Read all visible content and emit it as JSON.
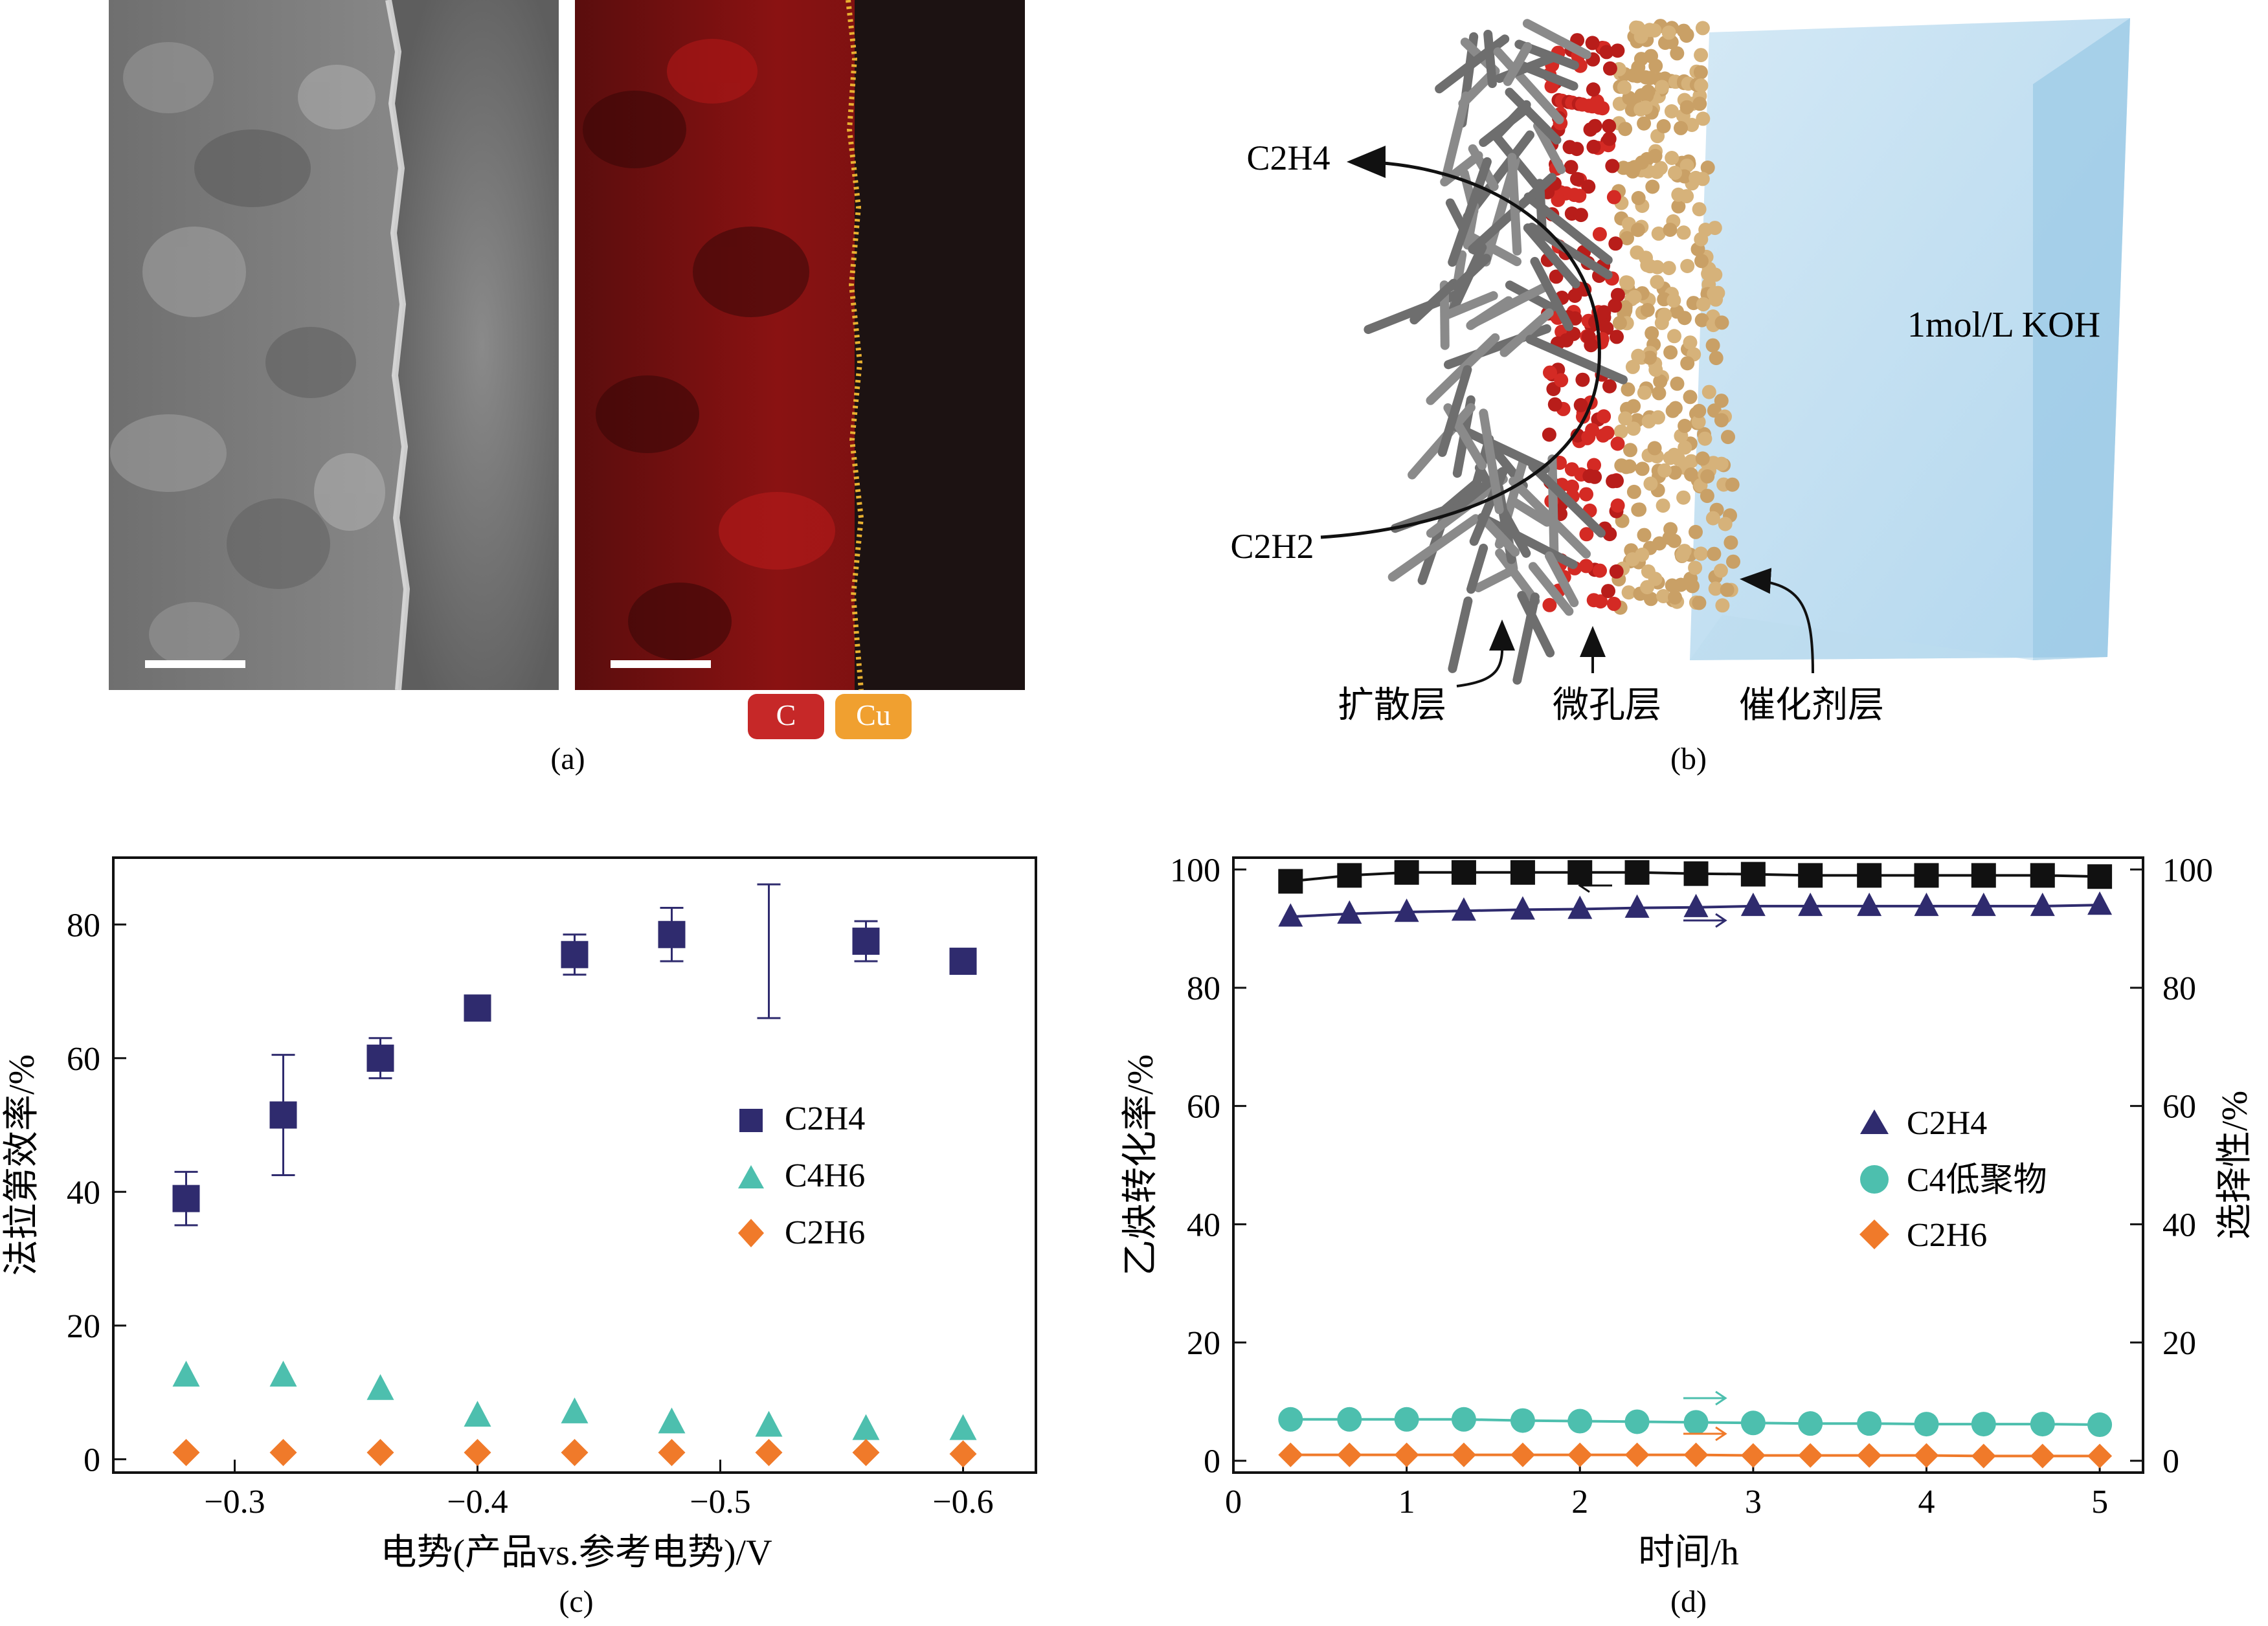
{
  "panel_a": {
    "caption": "(a)",
    "legend": [
      {
        "label": "C",
        "color": "#c62828"
      },
      {
        "label": "Cu",
        "color": "#f0a030"
      }
    ]
  },
  "panel_b": {
    "caption": "(b)",
    "inlet": "C2H2",
    "outlet": "C2H4",
    "electrolyte": "1mol/L KOH",
    "layers": [
      "扩散层",
      "微孔层",
      "催化剂层"
    ]
  },
  "chart_data": [
    {
      "type": "scatter",
      "panel": "c",
      "caption": "(c)",
      "ylabel": "法拉第效率/%",
      "xlabel": "电势(产品vs.参考电势)/V",
      "xlim": [
        -0.25,
        -0.63
      ],
      "ylim": [
        -2,
        90
      ],
      "xticks": [
        -0.3,
        -0.4,
        -0.5,
        -0.6
      ],
      "xtick_labels": [
        "−0.3",
        "−0.4",
        "−0.5",
        "−0.6"
      ],
      "yticks": [
        0,
        20,
        40,
        60,
        80
      ],
      "yticks_labels": [
        "0",
        "20",
        "40",
        "60",
        "80"
      ],
      "legend_position": "right-center",
      "series": [
        {
          "name": "C2H4",
          "marker": "square",
          "color": "#2f2b6e",
          "x": [
            -0.28,
            -0.32,
            -0.36,
            -0.4,
            -0.44,
            -0.48,
            -0.52,
            -0.56,
            -0.6
          ],
          "y": [
            39,
            51.5,
            60,
            67.5,
            75.5,
            78.5,
            null,
            77.5,
            74.5
          ],
          "err": [
            4,
            9,
            3,
            0,
            3,
            4,
            10,
            3,
            0
          ],
          "err_center": [
            39,
            51.5,
            60,
            67.5,
            75.5,
            78.5,
            76,
            77.5,
            74.5
          ]
        },
        {
          "name": "C4H6",
          "marker": "triangle",
          "color": "#4dbfae",
          "x": [
            -0.28,
            -0.32,
            -0.36,
            -0.4,
            -0.44,
            -0.48,
            -0.52,
            -0.56,
            -0.6
          ],
          "y": [
            12.5,
            12.5,
            10.5,
            6.5,
            7,
            5.5,
            5,
            4.5,
            4.5
          ]
        },
        {
          "name": "C2H6",
          "marker": "diamond",
          "color": "#f07a2a",
          "x": [
            -0.28,
            -0.32,
            -0.36,
            -0.4,
            -0.44,
            -0.48,
            -0.52,
            -0.56,
            -0.6
          ],
          "y": [
            1,
            1,
            1,
            1,
            1,
            1,
            1,
            1,
            0.8
          ]
        }
      ]
    },
    {
      "type": "line",
      "panel": "d",
      "caption": "(d)",
      "xlabel": "时间/h",
      "ylabel_left": "乙炔转化率/%",
      "ylabel_right": "选择性/%",
      "xlim": [
        0,
        5.25
      ],
      "ylim": [
        -2,
        102
      ],
      "xticks": [
        0,
        1,
        2,
        3,
        4,
        5
      ],
      "xtick_labels": [
        "0",
        "1",
        "2",
        "3",
        "4",
        "5"
      ],
      "yticks": [
        0,
        20,
        40,
        60,
        80,
        100
      ],
      "ytick_labels": [
        "0",
        "20",
        "40",
        "60",
        "80",
        "100"
      ],
      "legend_position": "right-center",
      "conversion": {
        "name": "乙炔转化率",
        "marker": "square",
        "color": "#111111",
        "x": [
          0.33,
          0.67,
          1.0,
          1.33,
          1.67,
          2.0,
          2.33,
          2.67,
          3.0,
          3.33,
          3.67,
          4.0,
          4.33,
          4.67,
          5.0
        ],
        "y": [
          98,
          99,
          99.5,
          99.5,
          99.5,
          99.5,
          99.5,
          99.3,
          99.2,
          99,
          99,
          99,
          99,
          99,
          98.8
        ]
      },
      "series": [
        {
          "name": "C2H4",
          "marker": "triangle",
          "color": "#2f2b6e",
          "x": [
            0.33,
            0.67,
            1.0,
            1.33,
            1.67,
            2.0,
            2.33,
            2.67,
            3.0,
            3.33,
            3.67,
            4.0,
            4.33,
            4.67,
            5.0
          ],
          "y": [
            92,
            92.5,
            92.8,
            93,
            93.2,
            93.3,
            93.5,
            93.6,
            93.8,
            93.8,
            93.8,
            93.8,
            93.8,
            93.8,
            94
          ]
        },
        {
          "name": "C4低聚物",
          "marker": "circle",
          "color": "#4dbfae",
          "x": [
            0.33,
            0.67,
            1.0,
            1.33,
            1.67,
            2.0,
            2.33,
            2.67,
            3.0,
            3.33,
            3.67,
            4.0,
            4.33,
            4.67,
            5.0
          ],
          "y": [
            7,
            7,
            7,
            7,
            6.8,
            6.7,
            6.6,
            6.5,
            6.4,
            6.3,
            6.3,
            6.2,
            6.2,
            6.2,
            6.1
          ]
        },
        {
          "name": "C2H6",
          "marker": "diamond",
          "color": "#f07a2a",
          "x": [
            0.33,
            0.67,
            1.0,
            1.33,
            1.67,
            2.0,
            2.33,
            2.67,
            3.0,
            3.33,
            3.67,
            4.0,
            4.33,
            4.67,
            5.0
          ],
          "y": [
            1,
            1,
            1,
            1,
            1,
            1,
            1,
            1,
            0.9,
            0.9,
            0.9,
            0.9,
            0.8,
            0.8,
            0.8
          ]
        }
      ]
    }
  ]
}
